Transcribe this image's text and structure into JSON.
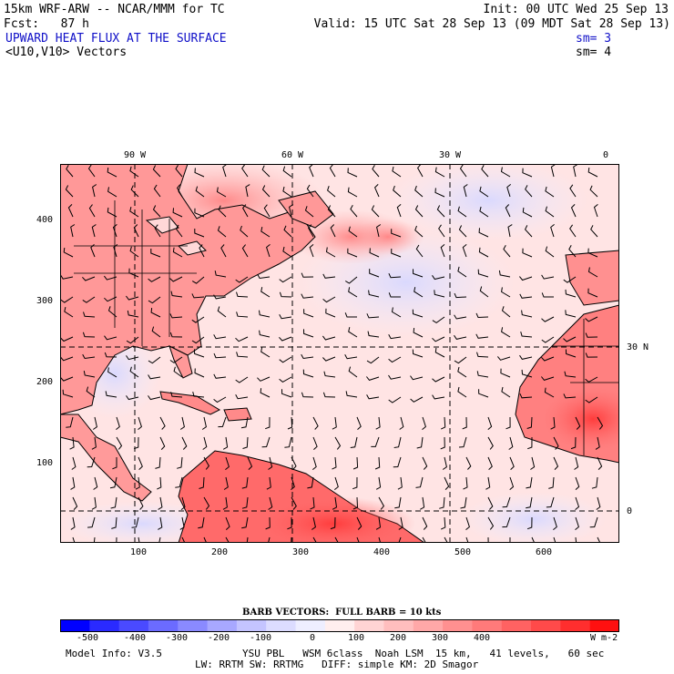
{
  "header": {
    "model_title": "15km WRF-ARW -- NCAR/MMM for TC",
    "init": "Init: 00 UTC Wed 25 Sep 13",
    "fcst": "Fcst:   87 h",
    "valid": "Valid: 15 UTC Sat 28 Sep 13 (09 MDT Sat 28 Sep 13)",
    "field": "UPWARD HEAT FLUX AT THE SURFACE",
    "sm1": "sm= 3",
    "vectors": "<U10,V10> Vectors",
    "sm2": "sm= 4"
  },
  "map": {
    "top_lon_labels": [
      "90 W",
      "60 W",
      "30 W",
      "0"
    ],
    "right_lat_labels": [
      "30 N",
      "0"
    ],
    "left_grid_labels": [
      "400",
      "300",
      "200",
      "100"
    ],
    "bottom_grid_labels": [
      "100",
      "200",
      "300",
      "400",
      "500",
      "600"
    ]
  },
  "legend": {
    "barb_note": "BARB VECTORS:  FULL BARB = 10 kts",
    "ticks": [
      "-500",
      "-400",
      "-300",
      "-200",
      "-100",
      "0",
      "100",
      "200",
      "300",
      "400"
    ],
    "units": "W m-2",
    "colors": [
      "#0000ff",
      "#2a2aff",
      "#4a4aff",
      "#6b6bff",
      "#8a8aff",
      "#a8a8ff",
      "#c4c4ff",
      "#dcdcff",
      "#eeeeff",
      "#ffeeee",
      "#ffd4d4",
      "#ffbebe",
      "#ffa8a8",
      "#ff9090",
      "#ff7a7a",
      "#ff6262",
      "#ff4a4a",
      "#ff2e2e",
      "#ff1010"
    ]
  },
  "footer": {
    "model_info": "Model Info: V3.5",
    "physics1": "YSU PBL   WSM 6class  Noah LSM  15 km,   41 levels,   60 sec",
    "physics2": "LW: RRTM SW: RRTMG   DIFF: simple KM: 2D Smagor"
  }
}
